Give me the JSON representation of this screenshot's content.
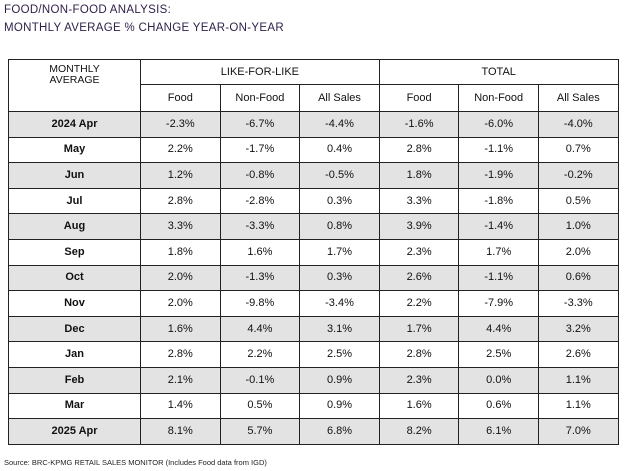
{
  "title_line1": "FOOD/NON-FOOD ANALYSIS:",
  "title_line2": "MONTHLY AVERAGE % CHANGE YEAR-ON-YEAR",
  "table": {
    "month_header_line1": "MONTHLY",
    "month_header_line2": "AVERAGE",
    "groups": [
      "LIKE-FOR-LIKE",
      "TOTAL"
    ],
    "subheaders": [
      "Food",
      "Non-Food",
      "All Sales",
      "Food",
      "Non-Food",
      "All Sales"
    ],
    "rows": [
      {
        "month": "2024 Apr",
        "values": [
          "-2.3%",
          "-6.7%",
          "-4.4%",
          "-1.6%",
          "-6.0%",
          "-4.0%"
        ]
      },
      {
        "month": "May",
        "values": [
          "2.2%",
          "-1.7%",
          "0.4%",
          "2.8%",
          "-1.1%",
          "0.7%"
        ]
      },
      {
        "month": "Jun",
        "values": [
          "1.2%",
          "-0.8%",
          "-0.5%",
          "1.8%",
          "-1.9%",
          "-0.2%"
        ]
      },
      {
        "month": "Jul",
        "values": [
          "2.8%",
          "-2.8%",
          "0.3%",
          "3.3%",
          "-1.8%",
          "0.5%"
        ]
      },
      {
        "month": "Aug",
        "values": [
          "3.3%",
          "-3.3%",
          "0.8%",
          "3.9%",
          "-1.4%",
          "1.0%"
        ]
      },
      {
        "month": "Sep",
        "values": [
          "1.8%",
          "1.6%",
          "1.7%",
          "2.3%",
          "1.7%",
          "2.0%"
        ]
      },
      {
        "month": "Oct",
        "values": [
          "2.0%",
          "-1.3%",
          "0.3%",
          "2.6%",
          "-1.1%",
          "0.6%"
        ]
      },
      {
        "month": "Nov",
        "values": [
          "2.0%",
          "-9.8%",
          "-3.4%",
          "2.2%",
          "-7.9%",
          "-3.3%"
        ]
      },
      {
        "month": "Dec",
        "values": [
          "1.6%",
          "4.4%",
          "3.1%",
          "1.7%",
          "4.4%",
          "3.2%"
        ]
      },
      {
        "month": "Jan",
        "values": [
          "2.8%",
          "2.2%",
          "2.5%",
          "2.8%",
          "2.5%",
          "2.6%"
        ]
      },
      {
        "month": "Feb",
        "values": [
          "2.1%",
          "-0.1%",
          "0.9%",
          "2.3%",
          "0.0%",
          "1.1%"
        ]
      },
      {
        "month": "Mar",
        "values": [
          "1.4%",
          "0.5%",
          "0.9%",
          "1.6%",
          "0.6%",
          "1.1%"
        ]
      },
      {
        "month": "2025 Apr",
        "values": [
          "8.1%",
          "5.7%",
          "6.8%",
          "8.2%",
          "6.1%",
          "7.0%"
        ]
      }
    ]
  },
  "source": "Source: BRC-KPMG RETAIL SALES MONITOR (Includes Food data from IGD)",
  "colors": {
    "title": "#2e1f47",
    "shade": "#e3e3e3",
    "border": "#222222"
  }
}
